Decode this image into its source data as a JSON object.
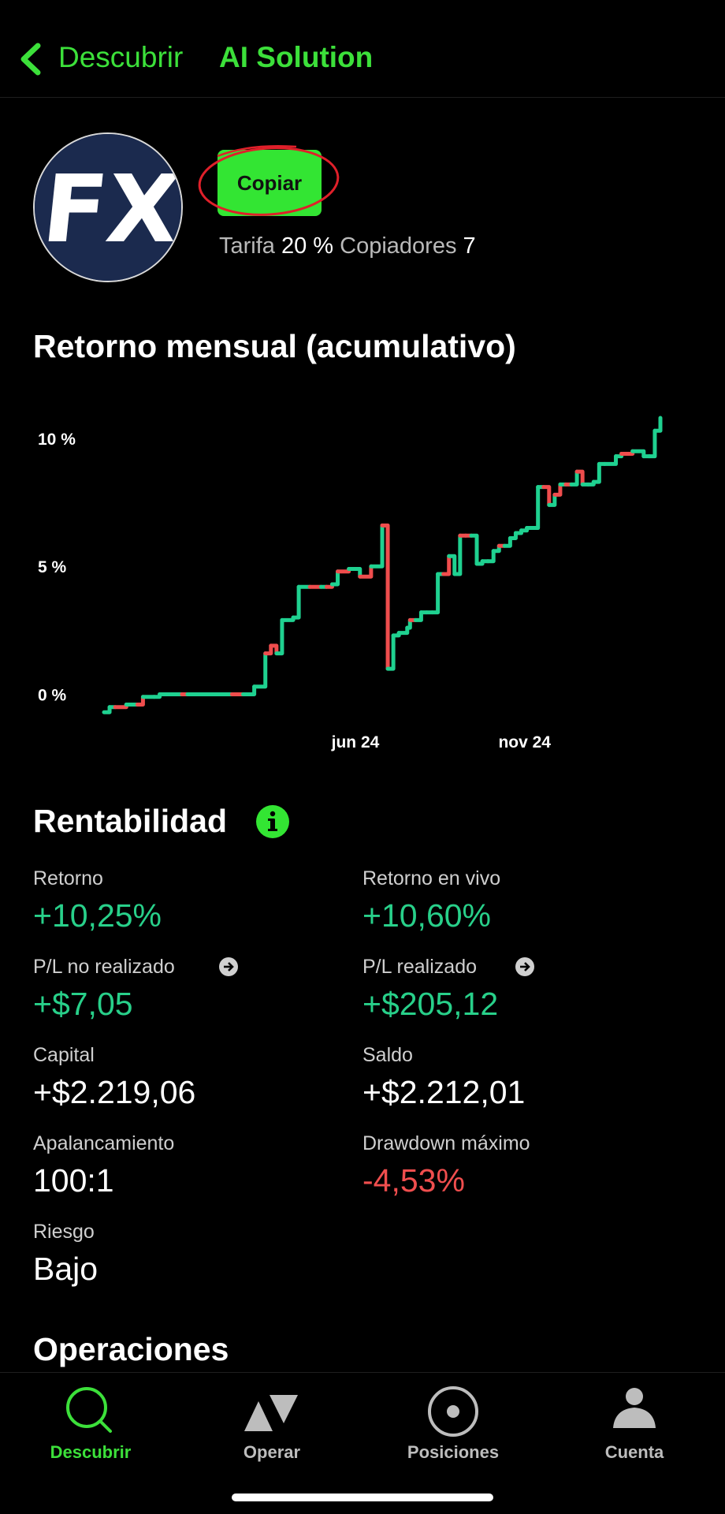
{
  "header": {
    "back_label": "Descubrir",
    "title": "AI Solution"
  },
  "profile": {
    "avatar_text": "FX",
    "copy_label": "Copiar",
    "fee_label": "Tarifa",
    "fee_value": "20 %",
    "copiers_label": "Copiadores",
    "copiers_value": "7"
  },
  "chart_section": {
    "title": "Retorno mensual (acumulativo)"
  },
  "chart_data": {
    "type": "line",
    "title": "Retorno mensual (acumulativo)",
    "xlabel": "",
    "ylabel": "",
    "y_ticks": [
      "10 %",
      "5 %",
      "0 %"
    ],
    "y_tick_values": [
      10,
      5,
      0
    ],
    "x_ticks": [
      "jun 24",
      "nov 24"
    ],
    "x_tick_positions": [
      0.44,
      0.74
    ],
    "ylim": [
      -0.6,
      10.8
    ],
    "colors": {
      "up": "#1fd190",
      "down": "#ef4d4d"
    },
    "series": [
      {
        "x": [
          0,
          0.01,
          0.02,
          0.04,
          0.05,
          0.06,
          0.07,
          0.09,
          0.1,
          0.11,
          0.13,
          0.14,
          0.15,
          0.17,
          0.2,
          0.23,
          0.25,
          0.26,
          0.27,
          0.29,
          0.3,
          0.31,
          0.32,
          0.34,
          0.35,
          0.37,
          0.39,
          0.4,
          0.41,
          0.42,
          0.44,
          0.46,
          0.48,
          0.5,
          0.51,
          0.52,
          0.53,
          0.545,
          0.55,
          0.56,
          0.57,
          0.58,
          0.59,
          0.6,
          0.61,
          0.62,
          0.63,
          0.64,
          0.65,
          0.66,
          0.67,
          0.68,
          0.69,
          0.7,
          0.71,
          0.72,
          0.73,
          0.74,
          0.75,
          0.76,
          0.78,
          0.79,
          0.8,
          0.81,
          0.82,
          0.83,
          0.84,
          0.85,
          0.86,
          0.87,
          0.88,
          0.89,
          0.9,
          0.92,
          0.93,
          0.95,
          0.97,
          0.98,
          0.99,
          1.0
        ],
        "y": [
          -0.7,
          -0.5,
          -0.5,
          -0.4,
          -0.4,
          -0.4,
          -0.1,
          -0.1,
          0.0,
          0.0,
          0.0,
          0.0,
          0.0,
          0.0,
          0.0,
          0.0,
          0.0,
          0.0,
          0.3,
          1.6,
          1.9,
          1.6,
          2.9,
          3.0,
          4.2,
          4.2,
          4.2,
          4.2,
          4.3,
          4.8,
          4.9,
          4.6,
          5.0,
          6.6,
          1.0,
          2.3,
          2.4,
          2.6,
          2.9,
          2.9,
          3.2,
          3.2,
          3.2,
          4.7,
          4.7,
          5.4,
          4.7,
          6.2,
          6.2,
          6.2,
          5.1,
          5.2,
          5.2,
          5.6,
          5.8,
          5.8,
          6.1,
          6.3,
          6.4,
          6.5,
          8.1,
          8.1,
          7.4,
          7.8,
          8.2,
          8.2,
          8.2,
          8.7,
          8.2,
          8.2,
          8.3,
          9.0,
          9.0,
          9.3,
          9.4,
          9.5,
          9.3,
          9.3,
          10.3,
          10.8
        ],
        "up_down": [
          "up",
          "up",
          "down",
          "up",
          "up",
          "down",
          "up",
          "up",
          "up",
          "up",
          "up",
          "down",
          "up",
          "up",
          "up",
          "down",
          "up",
          "up",
          "up",
          "down",
          "down",
          "up",
          "up",
          "up",
          "up",
          "down",
          "up",
          "down",
          "up",
          "down",
          "up",
          "down",
          "up",
          "down",
          "up",
          "up",
          "up",
          "up",
          "down",
          "up",
          "up",
          "up",
          "up",
          "up",
          "down",
          "up",
          "up",
          "down",
          "down",
          "up",
          "up",
          "up",
          "up",
          "up",
          "down",
          "up",
          "up",
          "up",
          "up",
          "up",
          "up",
          "down",
          "up",
          "down",
          "up",
          "down",
          "up",
          "down",
          "up",
          "up",
          "up",
          "up",
          "up",
          "up",
          "down",
          "up",
          "up",
          "up",
          "up",
          "up"
        ]
      }
    ]
  },
  "profitability": {
    "title": "Rentabilidad",
    "metrics": [
      {
        "label": "Retorno",
        "value": "+10,25%",
        "tone": "pos"
      },
      {
        "label": "Retorno en vivo",
        "value": "+10,60%",
        "tone": "pos"
      },
      {
        "label": "P/L no realizado",
        "value": "+$7,05",
        "tone": "pos"
      },
      {
        "label": "P/L realizado",
        "value": "+$205,12",
        "tone": "pos"
      },
      {
        "label": "Capital",
        "value": "+$2.219,06",
        "tone": "neu"
      },
      {
        "label": "Saldo",
        "value": "+$2.212,01",
        "tone": "neu"
      },
      {
        "label": "Apalancamiento",
        "value": "100:1",
        "tone": "neu"
      },
      {
        "label": "Drawdown máximo",
        "value": "-4,53%",
        "tone": "neg"
      },
      {
        "label": "Riesgo",
        "value": "Bajo",
        "tone": "neu"
      }
    ]
  },
  "operations": {
    "title": "Operaciones"
  },
  "tabbar": {
    "tabs": [
      {
        "label": "Descubrir",
        "icon": "search-icon",
        "active": true
      },
      {
        "label": "Operar",
        "icon": "triangles-icon",
        "active": false
      },
      {
        "label": "Posiciones",
        "icon": "target-icon",
        "active": false
      },
      {
        "label": "Cuenta",
        "icon": "person-icon",
        "active": false
      }
    ]
  },
  "colors": {
    "accent": "#3ce03a",
    "positive": "#28d08a",
    "negative": "#f04e4e",
    "annotation": "#e0202a"
  }
}
